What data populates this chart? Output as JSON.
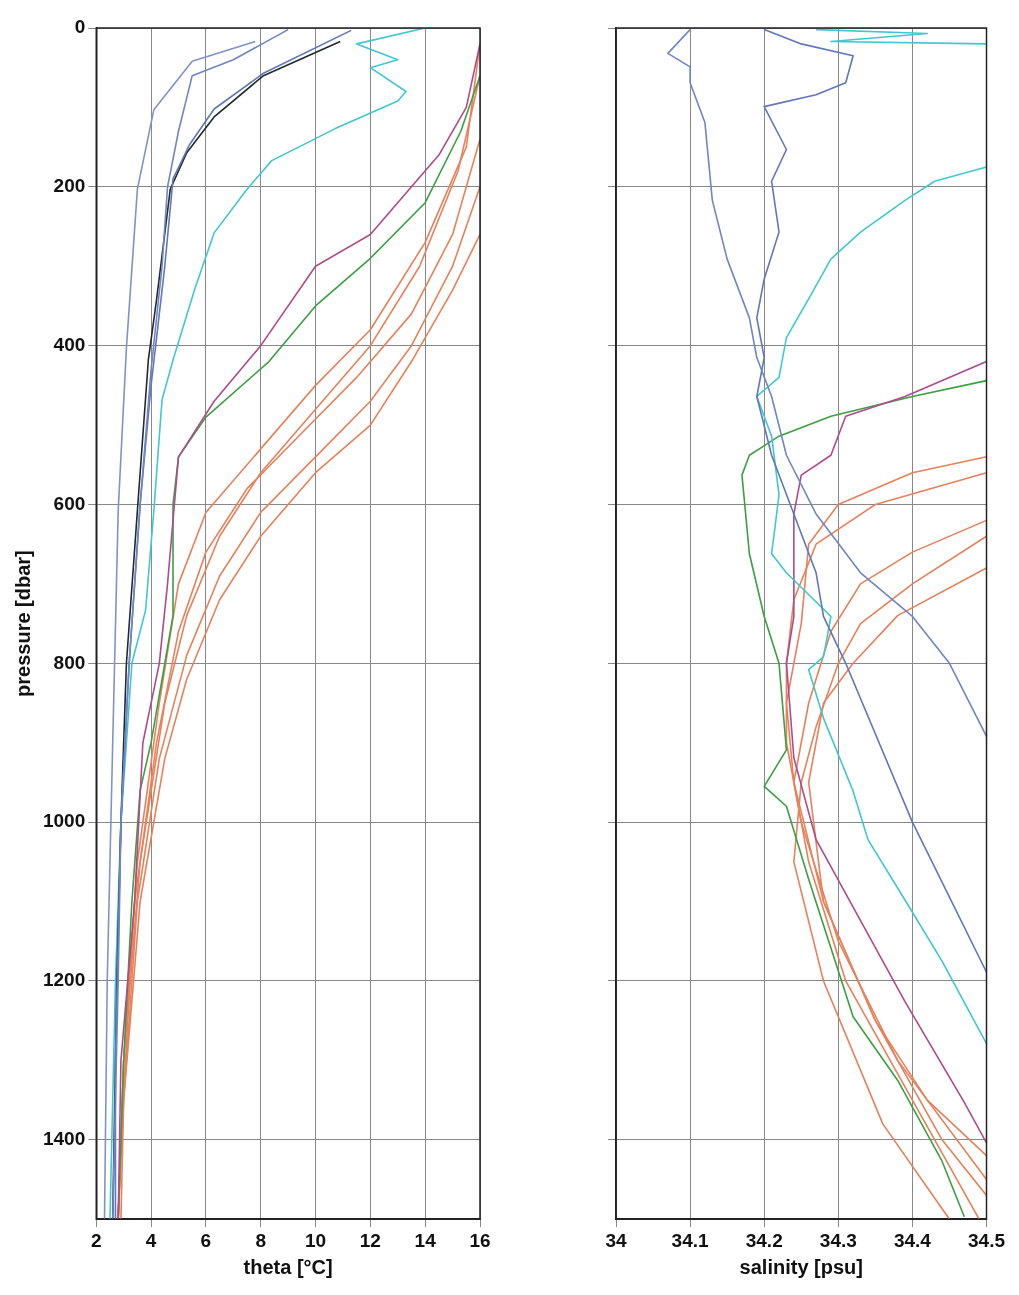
{
  "chart_data": [
    {
      "type": "line",
      "xlabel": "theta [°C]",
      "ylabel": "pressure [dbar]",
      "xlim": [
        2,
        16
      ],
      "xticks": [
        2,
        4,
        6,
        8,
        10,
        12,
        14,
        16
      ],
      "ylim": [
        1500,
        0
      ],
      "yticks": [
        0,
        200,
        400,
        600,
        800,
        1000,
        1200,
        1400
      ],
      "grid": true,
      "legend": false,
      "marker": "none",
      "line_style": "solid",
      "series": [
        {
          "color": "#7f93c9",
          "x": [
            7.8,
            5.5,
            4.1,
            3.5,
            3.1,
            2.8,
            2.6,
            2.4,
            2.3
          ],
          "values": [
            17,
            42,
            103,
            203,
            403,
            608,
            900,
            1200,
            1500
          ]
        },
        {
          "color": "#6f86c4",
          "x": [
            9,
            7,
            5.5,
            5,
            4.6,
            4.4,
            4,
            3.6,
            3.2,
            2.9,
            2.8,
            2.6
          ],
          "values": [
            2,
            40,
            60,
            130,
            200,
            300,
            430,
            600,
            800,
            1000,
            1200,
            1500
          ]
        },
        {
          "color": "#5f78bb",
          "x": [
            11.3,
            8.1,
            6.3,
            5.4,
            4.8,
            4.5,
            4,
            3.6,
            3.2,
            2.9,
            2.7,
            2.7
          ],
          "values": [
            3,
            57,
            102,
            147,
            190,
            300,
            450,
            600,
            800,
            1000,
            1300,
            1500
          ]
        },
        {
          "color": "#222a30",
          "x": [
            10.9,
            8.1,
            6.3,
            5.3,
            4.7,
            4.2,
            3.9,
            3.5,
            3.1,
            2.9,
            2.75,
            2.6
          ],
          "values": [
            17,
            60,
            112,
            157,
            203,
            342,
            418,
            608,
            800,
            1000,
            1200,
            1500
          ]
        },
        {
          "color": "#40c8d0",
          "x": [
            14,
            11.5,
            13,
            12,
            13.3,
            13,
            10.7,
            8.4,
            7.5,
            6.3,
            5.6,
            4.8,
            4.4,
            4.1,
            3.8,
            3.3,
            2.9,
            2.7,
            2.5
          ],
          "values": [
            0,
            20,
            40,
            50,
            80,
            92,
            127,
            167,
            203,
            258,
            328,
            418,
            468,
            608,
            733,
            800,
            1000,
            1200,
            1500
          ]
        },
        {
          "color": "#b04a8c",
          "x": [
            16,
            15.5,
            14.5,
            13.5,
            12,
            10,
            8,
            6.3,
            5,
            4.6,
            4.3,
            3.7,
            3.4,
            2.9,
            2.8
          ],
          "values": [
            20,
            100,
            160,
            200,
            260,
            300,
            400,
            470,
            540,
            700,
            800,
            900,
            1100,
            1300,
            1500
          ]
        },
        {
          "color": "#3aa040",
          "x": [
            16,
            15.3,
            14,
            12,
            10,
            8.3,
            6,
            5,
            4.8,
            4.8,
            4.5,
            4,
            3.6,
            3.3,
            3,
            2.8
          ],
          "values": [
            60,
            130,
            220,
            290,
            350,
            420,
            490,
            540,
            600,
            740,
            800,
            900,
            960,
            1100,
            1300,
            1500
          ]
        },
        {
          "color": "#e8805a",
          "x": [
            16,
            15.5,
            14,
            12,
            10,
            8,
            6,
            5,
            4.3,
            3.5,
            3,
            2.8
          ],
          "values": [
            20,
            150,
            270,
            380,
            450,
            530,
            610,
            700,
            850,
            1050,
            1300,
            1500
          ]
        },
        {
          "color": "#e8805a",
          "x": [
            16,
            15.2,
            13.8,
            12,
            10,
            8,
            6.5,
            5.3,
            4.5,
            3.6,
            3,
            2.8
          ],
          "values": [
            60,
            180,
            300,
            400,
            480,
            560,
            640,
            740,
            850,
            1050,
            1300,
            1500
          ]
        },
        {
          "color": "#e8805a",
          "x": [
            16,
            15,
            13.5,
            11.5,
            9.5,
            7.5,
            6,
            5,
            4.2,
            3.4,
            2.9,
            2.8
          ],
          "values": [
            140,
            260,
            360,
            440,
            510,
            580,
            660,
            760,
            900,
            1100,
            1400,
            1500
          ]
        },
        {
          "color": "#e8805a",
          "x": [
            16,
            15,
            13.5,
            12,
            10,
            8,
            6.5,
            5.3,
            4.3,
            3.5,
            3,
            2.8
          ],
          "values": [
            200,
            300,
            400,
            470,
            540,
            610,
            690,
            790,
            920,
            1100,
            1350,
            1500
          ]
        },
        {
          "color": "#e8805a",
          "x": [
            16,
            15,
            13.5,
            12,
            10,
            8,
            6.5,
            5.3,
            4.5,
            3.6,
            3,
            2.9
          ],
          "values": [
            260,
            330,
            420,
            500,
            560,
            640,
            720,
            820,
            920,
            1100,
            1350,
            1500
          ]
        }
      ]
    },
    {
      "type": "line",
      "xlabel": "salinity [psu]",
      "xlim": [
        34,
        34.5
      ],
      "xticks": [
        34,
        34.1,
        34.2,
        34.3,
        34.4,
        34.5
      ],
      "ylim": [
        1500,
        0
      ],
      "yticks": [
        0,
        200,
        400,
        600,
        800,
        1000,
        1200,
        1400
      ],
      "tick_labels": "x",
      "grid": true,
      "legend": false,
      "marker": "none",
      "line_style": "solid",
      "series": [
        {
          "color": "#6f86c4",
          "x": [
            34.1,
            34.07,
            34.1,
            34.1,
            34.12,
            34.13,
            34.15,
            34.18,
            34.19,
            34.21,
            34.23,
            34.27,
            34.33,
            34.4,
            34.45,
            34.5
          ],
          "values": [
            2,
            32,
            49,
            69,
            119,
            217,
            291,
            365,
            415,
            464,
            538,
            612,
            686,
            741,
            800,
            892
          ]
        },
        {
          "color": "#5f78bb",
          "x": [
            34.2,
            34.25,
            34.32,
            34.31,
            34.27,
            34.2,
            34.23,
            34.21,
            34.22,
            34.2,
            34.19,
            34.2,
            34.19,
            34.21,
            34.24,
            34.27,
            34.28,
            34.31,
            34.4,
            34.5
          ],
          "values": [
            2,
            20,
            35,
            69,
            84,
            99,
            153,
            193,
            257,
            316,
            365,
            415,
            464,
            538,
            612,
            686,
            741,
            800,
            1000,
            1189
          ]
        },
        {
          "color": "#40c8d0",
          "x": [
            34.27,
            34.42,
            34.29,
            34.5
          ],
          "values": [
            2,
            7,
            17,
            20
          ]
        },
        {
          "color": "#40c8d0",
          "x": [
            34.5,
            34.43,
            34.39,
            34.33,
            34.29,
            34.26,
            34.23,
            34.22,
            34.19,
            34.21,
            34.22,
            34.21,
            34.23,
            34.29,
            34.28,
            34.26,
            34.28,
            34.32,
            34.34,
            34.39,
            34.44,
            34.5
          ],
          "values": [
            175,
            193,
            217,
            257,
            291,
            341,
            390,
            440,
            464,
            514,
            588,
            662,
            686,
            741,
            792,
            808,
            869,
            961,
            1022,
            1098,
            1175,
            1279
          ]
        },
        {
          "color": "#b04a8c",
          "x": [
            34.5,
            34.39,
            34.31,
            34.29,
            34.25,
            34.24,
            34.24,
            34.23,
            34.24,
            34.27,
            34.33,
            34.39,
            34.47,
            34.5
          ],
          "values": [
            420,
            464,
            489,
            538,
            563,
            612,
            741,
            800,
            919,
            1022,
            1124,
            1226,
            1353,
            1404
          ]
        },
        {
          "color": "#3aa040",
          "x": [
            34.5,
            34.4,
            34.29,
            34.22,
            34.18,
            34.17,
            34.18,
            34.2,
            34.22,
            34.23,
            34.2,
            34.23,
            34.26,
            34.32,
            34.38,
            34.44,
            34.47
          ],
          "values": [
            444,
            464,
            489,
            514,
            538,
            563,
            662,
            741,
            800,
            909,
            955,
            980,
            1072,
            1245,
            1325,
            1427,
            1497
          ]
        },
        {
          "color": "#e8805a",
          "x": [
            34.5,
            34.4,
            34.3,
            34.26,
            34.25,
            34.23,
            34.24,
            34.28,
            34.35,
            34.42,
            34.5
          ],
          "values": [
            540,
            560,
            600,
            650,
            750,
            850,
            950,
            1100,
            1250,
            1350,
            1420
          ]
        },
        {
          "color": "#e8805a",
          "x": [
            34.5,
            34.35,
            34.27,
            34.24,
            34.23,
            34.23,
            34.25,
            34.3,
            34.38,
            34.46,
            34.5
          ],
          "values": [
            560,
            600,
            650,
            720,
            800,
            900,
            1000,
            1150,
            1300,
            1400,
            1450
          ]
        },
        {
          "color": "#e8805a",
          "x": [
            34.5,
            34.4,
            34.33,
            34.29,
            34.26,
            34.24,
            34.26,
            34.31,
            34.4,
            34.49
          ],
          "values": [
            620,
            660,
            700,
            760,
            850,
            950,
            1050,
            1200,
            1350,
            1500
          ]
        },
        {
          "color": "#e8805a",
          "x": [
            34.5,
            34.4,
            34.33,
            34.3,
            34.27,
            34.25,
            34.24,
            34.28,
            34.36,
            34.45
          ],
          "values": [
            640,
            700,
            750,
            800,
            880,
            950,
            1050,
            1200,
            1380,
            1500
          ]
        },
        {
          "color": "#e8805a",
          "x": [
            34.5,
            34.38,
            34.32,
            34.28,
            34.26,
            34.28,
            34.35,
            34.44,
            34.5
          ],
          "values": [
            680,
            740,
            800,
            850,
            950,
            1100,
            1250,
            1400,
            1470
          ]
        }
      ]
    }
  ]
}
